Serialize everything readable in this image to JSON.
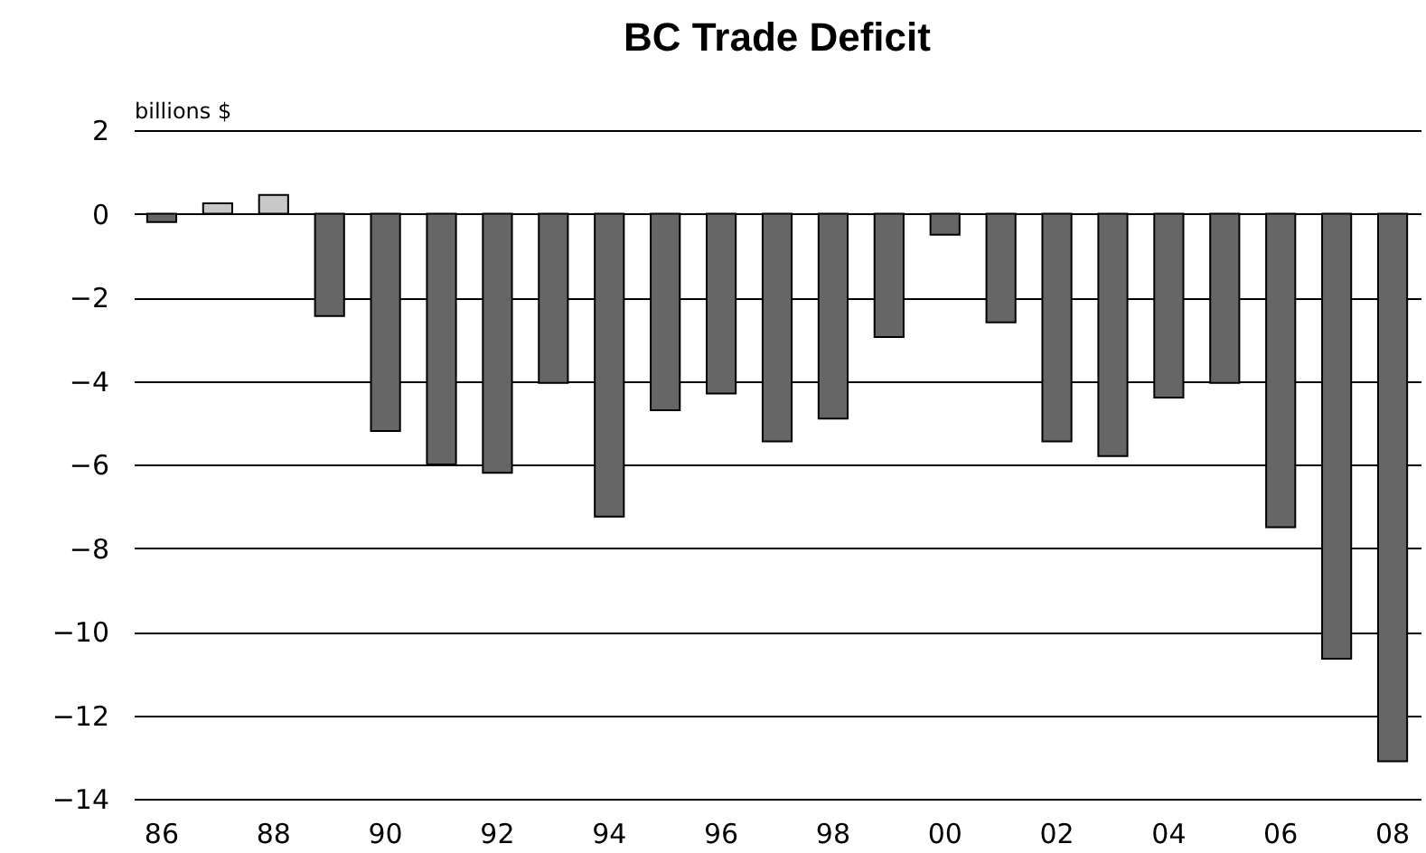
{
  "chart_data": {
    "type": "bar",
    "title": "BC Trade Deficit",
    "ylabel": "billions $",
    "categories": [
      "86",
      null,
      "88",
      null,
      "90",
      null,
      "92",
      null,
      "94",
      null,
      "96",
      null,
      "98",
      null,
      "00",
      null,
      "02",
      null,
      "04",
      null,
      "06",
      null,
      "08"
    ],
    "values": [
      -0.2,
      0.25,
      0.45,
      -2.45,
      -5.2,
      -6.0,
      -6.2,
      -4.05,
      -7.25,
      -4.7,
      -4.3,
      -5.45,
      -4.9,
      -2.95,
      -0.5,
      -2.6,
      -5.45,
      -5.8,
      -4.4,
      -4.05,
      -7.5,
      -10.65,
      -13.1
    ],
    "colors": [
      "#666666",
      "#c8c8c8",
      "#c8c8c8",
      "#666666",
      "#666666",
      "#666666",
      "#666666",
      "#666666",
      "#666666",
      "#666666",
      "#666666",
      "#666666",
      "#666666",
      "#666666",
      "#666666",
      "#666666",
      "#666666",
      "#666666",
      "#666666",
      "#666666",
      "#666666",
      "#666666",
      "#666666"
    ],
    "ylim": [
      -14,
      2
    ],
    "yticks": [
      -14,
      -12,
      -10,
      -8,
      -6,
      -4,
      -2,
      0,
      2
    ],
    "grid": "y"
  }
}
